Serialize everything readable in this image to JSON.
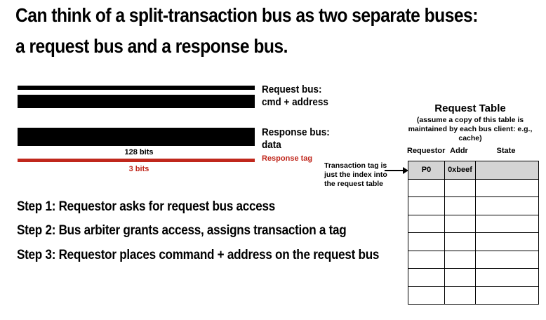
{
  "heading": {
    "line1": "Can think of a split-transaction bus as two separate buses:",
    "line2": "a request bus and a response bus."
  },
  "buses": {
    "request_label": "Request bus:",
    "request_sublabel": "cmd + address",
    "response_label": "Response bus:",
    "response_sublabel": "data",
    "width_128": "128 bits",
    "width_3": "3 bits",
    "tag_label": "Response tag"
  },
  "steps": [
    "Step 1: Requestor asks for request bus access",
    "Step 2: Bus arbiter grants access, assigns transaction a tag",
    "Step 3: Requestor places command + address on the request bus"
  ],
  "request_table": {
    "title": "Request Table",
    "note": "(assume a copy of this table is maintained by each bus client: e.g., cache)",
    "columns": [
      "Requestor",
      "Addr",
      "State"
    ],
    "rows": [
      [
        "P0",
        "0xbeef",
        ""
      ],
      [
        "",
        "",
        ""
      ],
      [
        "",
        "",
        ""
      ],
      [
        "",
        "",
        ""
      ],
      [
        "",
        "",
        ""
      ],
      [
        "",
        "",
        ""
      ],
      [
        "",
        "",
        ""
      ],
      [
        "",
        "",
        ""
      ]
    ]
  },
  "annotation": {
    "line1": "Transaction tag is",
    "line2": "just the index into",
    "line3": "the request table"
  },
  "colors": {
    "bus": "#000000",
    "tag": "#c0271c",
    "filled_row": "#d4d4d4"
  }
}
